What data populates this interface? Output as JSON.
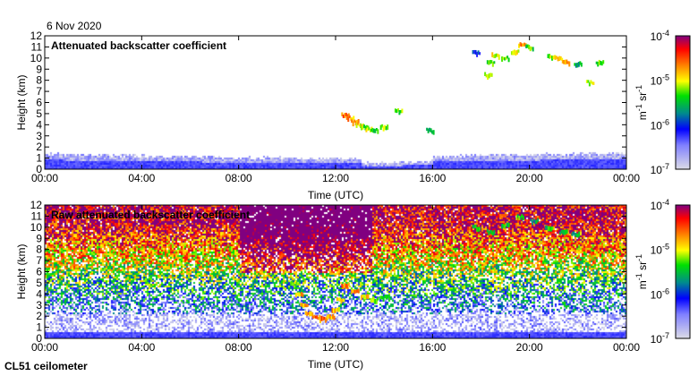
{
  "date_label": "6 Nov 2020",
  "instrument_label": "CL51 ceilometer",
  "chart_data": [
    {
      "type": "heatmap",
      "title": "Attenuated backscatter coefficient",
      "xlabel": "Time (UTC)",
      "ylabel": "Height (km)",
      "xlim": [
        0,
        24
      ],
      "ylim": [
        0,
        12
      ],
      "x_ticks": [
        "00:00",
        "04:00",
        "08:00",
        "12:00",
        "16:00",
        "20:00",
        "00:00"
      ],
      "y_ticks": [
        "0",
        "1",
        "2",
        "3",
        "4",
        "5",
        "6",
        "7",
        "8",
        "9",
        "10",
        "11",
        "12"
      ],
      "colorbar": {
        "label_unit": "m",
        "label_unit_exp": "-1",
        "label_sr": " sr",
        "label_sr_exp": "-1",
        "range_log10": [
          -7,
          -4
        ],
        "ticks": [
          {
            "base": "10",
            "exp": "-4"
          },
          {
            "base": "10",
            "exp": "-5"
          },
          {
            "base": "10",
            "exp": "-6"
          },
          {
            "base": "10",
            "exp": "-7"
          }
        ]
      },
      "boundary_layer": {
        "top_km_start": 1.3,
        "top_km_mid": 0.9,
        "top_km_end": 1.4
      },
      "features": [
        {
          "t": 12.4,
          "h": 4.9,
          "v": -4.3
        },
        {
          "t": 12.6,
          "h": 4.6,
          "v": -4.5
        },
        {
          "t": 12.8,
          "h": 4.3,
          "v": -4.6
        },
        {
          "t": 13.0,
          "h": 4.0,
          "v": -4.7
        },
        {
          "t": 13.2,
          "h": 3.8,
          "v": -5.0
        },
        {
          "t": 13.4,
          "h": 3.6,
          "v": -4.8
        },
        {
          "t": 13.6,
          "h": 3.5,
          "v": -5.2
        },
        {
          "t": 14.0,
          "h": 3.8,
          "v": -5.0
        },
        {
          "t": 14.6,
          "h": 5.3,
          "v": -5.0
        },
        {
          "t": 15.9,
          "h": 3.5,
          "v": -5.3
        },
        {
          "t": 17.8,
          "h": 10.5,
          "v": -5.8
        },
        {
          "t": 18.3,
          "h": 8.5,
          "v": -5.0
        },
        {
          "t": 18.4,
          "h": 9.6,
          "v": -5.0
        },
        {
          "t": 18.6,
          "h": 10.3,
          "v": -4.8
        },
        {
          "t": 19.0,
          "h": 10.0,
          "v": -5.0
        },
        {
          "t": 19.4,
          "h": 10.6,
          "v": -4.8
        },
        {
          "t": 19.7,
          "h": 11.2,
          "v": -4.5
        },
        {
          "t": 20.0,
          "h": 11.0,
          "v": -5.1
        },
        {
          "t": 20.9,
          "h": 10.2,
          "v": -4.9
        },
        {
          "t": 21.2,
          "h": 10.0,
          "v": -4.7
        },
        {
          "t": 21.5,
          "h": 9.7,
          "v": -4.6
        },
        {
          "t": 22.0,
          "h": 9.5,
          "v": -5.3
        },
        {
          "t": 22.5,
          "h": 7.8,
          "v": -4.9
        },
        {
          "t": 22.9,
          "h": 9.6,
          "v": -5.1
        }
      ]
    },
    {
      "type": "heatmap",
      "title": "Raw attenuated backscatter coefficient",
      "xlabel": "Time (UTC)",
      "ylabel": "Height (km)",
      "xlim": [
        0,
        24
      ],
      "ylim": [
        0,
        12
      ],
      "x_ticks": [
        "00:00",
        "04:00",
        "08:00",
        "12:00",
        "16:00",
        "20:00",
        "00:00"
      ],
      "y_ticks": [
        "0",
        "1",
        "2",
        "3",
        "4",
        "5",
        "6",
        "7",
        "8",
        "9",
        "10",
        "11",
        "12"
      ],
      "colorbar": {
        "label_unit": "m",
        "label_unit_exp": "-1",
        "label_sr": " sr",
        "label_sr_exp": "-1",
        "range_log10": [
          -7,
          -4
        ],
        "ticks": [
          {
            "base": "10",
            "exp": "-4"
          },
          {
            "base": "10",
            "exp": "-5"
          },
          {
            "base": "10",
            "exp": "-6"
          },
          {
            "base": "10",
            "exp": "-7"
          }
        ]
      },
      "features": [
        {
          "t": 10.3,
          "h": 5.0,
          "v": -4.8
        },
        {
          "t": 10.5,
          "h": 4.0,
          "v": -4.6
        },
        {
          "t": 10.7,
          "h": 3.0,
          "v": -4.6
        },
        {
          "t": 10.9,
          "h": 2.3,
          "v": -4.5
        },
        {
          "t": 11.2,
          "h": 1.9,
          "v": -4.4
        },
        {
          "t": 11.5,
          "h": 1.8,
          "v": -4.4
        },
        {
          "t": 11.8,
          "h": 2.0,
          "v": -4.5
        },
        {
          "t": 12.0,
          "h": 2.6,
          "v": -4.6
        },
        {
          "t": 12.2,
          "h": 3.5,
          "v": -4.6
        },
        {
          "t": 12.4,
          "h": 4.8,
          "v": -4.4
        },
        {
          "t": 12.8,
          "h": 4.3,
          "v": -4.5
        },
        {
          "t": 13.2,
          "h": 3.8,
          "v": -4.7
        },
        {
          "t": 13.6,
          "h": 3.5,
          "v": -4.9
        },
        {
          "t": 14.0,
          "h": 3.7,
          "v": -5.0
        },
        {
          "t": 17.8,
          "h": 10.0,
          "v": -5.3
        },
        {
          "t": 18.4,
          "h": 9.6,
          "v": -5.2
        },
        {
          "t": 19.0,
          "h": 10.2,
          "v": -5.2
        },
        {
          "t": 19.6,
          "h": 11.0,
          "v": -5.1
        },
        {
          "t": 20.2,
          "h": 10.6,
          "v": -5.3
        },
        {
          "t": 20.8,
          "h": 10.0,
          "v": -5.2
        },
        {
          "t": 21.4,
          "h": 9.6,
          "v": -5.2
        },
        {
          "t": 21.9,
          "h": 9.4,
          "v": -5.3
        }
      ]
    }
  ]
}
